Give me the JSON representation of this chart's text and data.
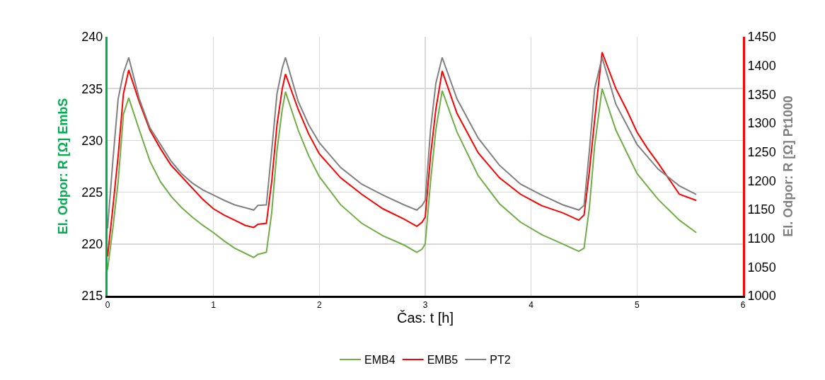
{
  "chart_data": {
    "type": "line",
    "xlabel": "Čas: t [h]",
    "ylabel": "El. Odpor: R [Ω] EmbS",
    "y2label": "El. Odpor: R [Ω] Pt1000",
    "xlim": [
      0,
      6
    ],
    "xticks": [
      0,
      1,
      2,
      3,
      4,
      5,
      6
    ],
    "ylim": [
      215,
      240
    ],
    "yticks": [
      215,
      220,
      225,
      230,
      235,
      240
    ],
    "y2lim": [
      1000,
      1450
    ],
    "y2ticks": [
      1000,
      1050,
      1100,
      1150,
      1200,
      1250,
      1300,
      1350,
      1400,
      1450
    ],
    "grid": true,
    "legend": "bottom",
    "marker": "none",
    "line_style": "solid",
    "series": [
      {
        "name": "EMB4",
        "color": "#70ad47",
        "x": [
          0,
          0.05,
          0.1,
          0.15,
          0.2,
          0.3,
          0.4,
          0.5,
          0.6,
          0.7,
          0.8,
          0.9,
          1.0,
          1.1,
          1.2,
          1.3,
          1.38,
          1.42,
          1.5,
          1.55,
          1.6,
          1.65,
          1.68,
          1.8,
          1.9,
          2.0,
          2.2,
          2.4,
          2.6,
          2.8,
          2.92,
          2.97,
          3.0,
          3.05,
          3.1,
          3.16,
          3.3,
          3.5,
          3.7,
          3.9,
          4.1,
          4.3,
          4.45,
          4.5,
          4.55,
          4.6,
          4.67,
          4.8,
          5.0,
          5.2,
          5.4,
          5.56
        ],
        "values": [
          217.5,
          221.5,
          226,
          232.5,
          234.1,
          231,
          228,
          226,
          224.6,
          223.5,
          222.6,
          221.8,
          221.1,
          220.3,
          219.6,
          219.1,
          218.7,
          219.0,
          219.2,
          223,
          229,
          233,
          234.7,
          231,
          228.5,
          226.5,
          223.8,
          222,
          220.8,
          219.9,
          219.2,
          219.5,
          220,
          226,
          231,
          234.8,
          230.8,
          226.6,
          223.9,
          222.1,
          220.9,
          220,
          219.3,
          219.6,
          223.5,
          229.5,
          235,
          231,
          226.8,
          224.3,
          222.3,
          221.1
        ]
      },
      {
        "name": "EMB5",
        "color": "#ff0000",
        "x": [
          0,
          0.05,
          0.1,
          0.15,
          0.2,
          0.3,
          0.4,
          0.5,
          0.6,
          0.7,
          0.8,
          0.9,
          1.0,
          1.1,
          1.2,
          1.3,
          1.38,
          1.42,
          1.5,
          1.55,
          1.6,
          1.65,
          1.68,
          1.8,
          1.9,
          2.0,
          2.2,
          2.4,
          2.6,
          2.8,
          2.92,
          2.97,
          3.0,
          3.05,
          3.1,
          3.16,
          3.3,
          3.5,
          3.7,
          3.9,
          4.1,
          4.3,
          4.45,
          4.5,
          4.55,
          4.6,
          4.67,
          4.8,
          4.9,
          5.0,
          5.1,
          5.2,
          5.3,
          5.4,
          5.56
        ],
        "values": [
          218.8,
          223.5,
          228.5,
          234.5,
          236.8,
          233.7,
          231,
          229.2,
          227.6,
          226.5,
          225.4,
          224.3,
          223.4,
          222.8,
          222.3,
          221.8,
          221.6,
          221.9,
          222,
          226,
          231.5,
          235,
          236.4,
          233,
          230.6,
          228.7,
          226.4,
          224.8,
          223.4,
          222.4,
          221.7,
          222.1,
          222.6,
          228.5,
          233,
          236.7,
          232.6,
          228.8,
          226.4,
          224.8,
          223.7,
          223,
          222.3,
          222.8,
          227,
          232,
          238.5,
          235,
          233,
          230.8,
          229.2,
          227.8,
          226.3,
          224.8,
          224.2
        ]
      },
      {
        "name": "PT2",
        "color": "#808080",
        "axis": "y2",
        "x": [
          0,
          0.05,
          0.1,
          0.15,
          0.2,
          0.3,
          0.4,
          0.5,
          0.6,
          0.7,
          0.8,
          0.9,
          1.0,
          1.1,
          1.2,
          1.3,
          1.38,
          1.42,
          1.5,
          1.55,
          1.6,
          1.65,
          1.68,
          1.8,
          1.9,
          2.0,
          2.2,
          2.4,
          2.6,
          2.8,
          2.92,
          2.97,
          3.0,
          3.05,
          3.1,
          3.16,
          3.3,
          3.5,
          3.7,
          3.9,
          4.1,
          4.3,
          4.45,
          4.5,
          4.55,
          4.6,
          4.67,
          4.8,
          5.0,
          5.2,
          5.4,
          5.56
        ],
        "values": [
          1117,
          1234,
          1342,
          1387,
          1414,
          1342,
          1292,
          1263,
          1234,
          1212,
          1196,
          1184,
          1175,
          1166,
          1158,
          1153,
          1149,
          1157,
          1158,
          1252,
          1351,
          1396,
          1414,
          1338,
          1297,
          1266,
          1223,
          1194,
          1175,
          1158,
          1149,
          1157,
          1166,
          1288,
          1369,
          1414,
          1342,
          1274,
          1227,
          1194,
          1175,
          1158,
          1149,
          1157,
          1252,
          1360,
          1414,
          1333,
          1263,
          1220,
          1191,
          1176
        ]
      }
    ]
  }
}
